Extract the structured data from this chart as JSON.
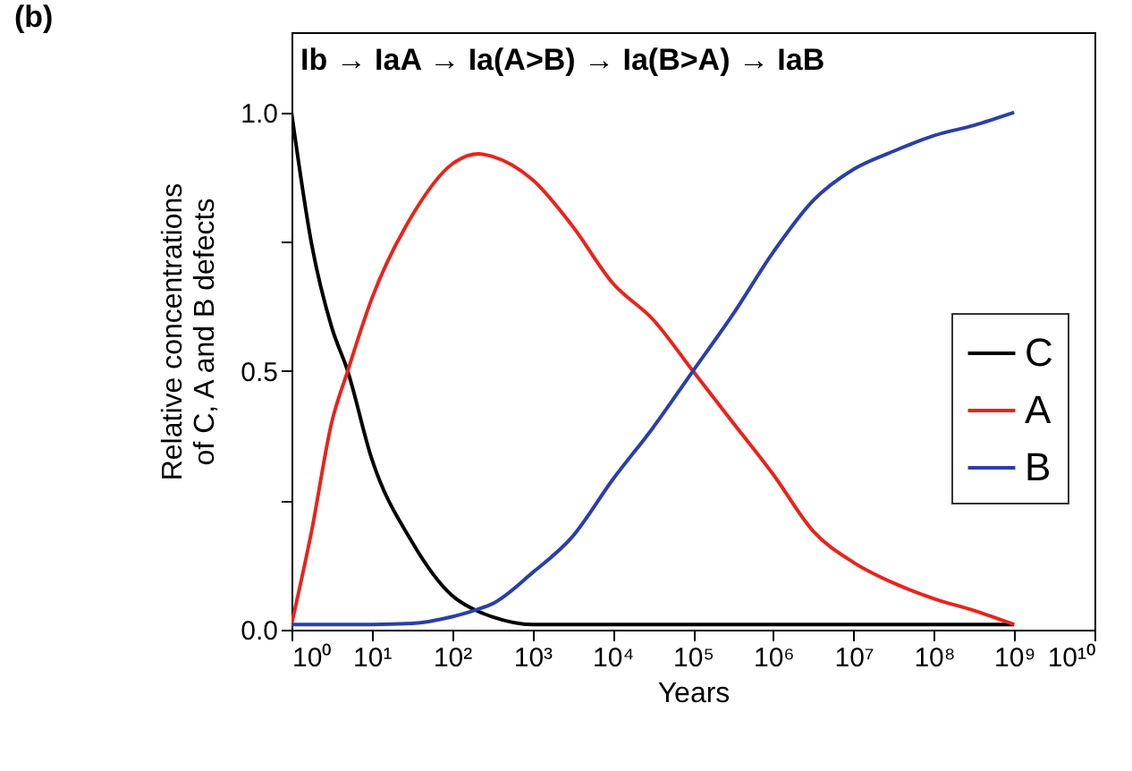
{
  "chart_data": {
    "type": "line",
    "xlabel": "Years",
    "ylabel": "Relative concentrations\nof C, A and B defects",
    "annotations": [
      "(b)",
      "Ib → IaA → Ia(A>B) → Ia(B>A) → IaB"
    ],
    "log": "x",
    "xlim": [
      1,
      10000000000
    ],
    "ylim": [
      0,
      1.155
    ],
    "xticks": [
      {
        "value": 1,
        "label": "10⁰"
      },
      {
        "value": 10,
        "label": "10¹"
      },
      {
        "value": 100,
        "label": "10²"
      },
      {
        "value": 1000,
        "label": "10³"
      },
      {
        "value": 10000,
        "label": "10⁴"
      },
      {
        "value": 100000,
        "label": "10⁵"
      },
      {
        "value": 1000000,
        "label": "10⁶"
      },
      {
        "value": 10000000,
        "label": "10⁷"
      },
      {
        "value": 100000000,
        "label": "10⁸"
      },
      {
        "value": 1000000000,
        "label": "10⁹"
      },
      {
        "value": 10000000000,
        "label": "10¹⁰"
      }
    ],
    "yticks": [
      {
        "value": 0,
        "label": "0.0"
      },
      {
        "value": 0.25,
        "label": null
      },
      {
        "value": 0.5,
        "label": "0.5"
      },
      {
        "value": 0.75,
        "label": null
      },
      {
        "value": 1,
        "label": "1.0"
      }
    ],
    "grid": false,
    "legend": "right",
    "marker": "none",
    "line_style": "solid",
    "x": [
      1,
      1.778,
      3.162,
      5.012,
      10,
      31.62,
      100,
      214,
      316.2,
      1000,
      3162,
      10000,
      31620,
      100000,
      316200,
      1000000,
      3162000,
      10000000,
      31620000,
      100000000,
      316200000,
      1000000000
    ],
    "series": [
      {
        "name": "C",
        "color": "#000000",
        "values": [
          1.0,
          0.746,
          0.585,
          0.5,
          0.33,
          0.17,
          0.066,
          0.035,
          0.025,
          0.01,
          0.01,
          0.01,
          0.01,
          0.01,
          0.01,
          0.01,
          0.01,
          0.01,
          0.01,
          0.01,
          0.01,
          0.01
        ]
      },
      {
        "name": "A",
        "color": "#e8241c",
        "values": [
          0.01,
          0.19,
          0.4,
          0.5,
          0.64,
          0.8,
          0.9,
          0.92,
          0.915,
          0.87,
          0.78,
          0.67,
          0.6,
          0.5,
          0.4,
          0.3,
          0.19,
          0.13,
          0.09,
          0.06,
          0.037,
          0.01
        ]
      },
      {
        "name": "B",
        "color": "#2a3fa8",
        "values": [
          0.01,
          0.01,
          0.01,
          0.01,
          0.01,
          0.012,
          0.025,
          0.04,
          0.05,
          0.11,
          0.18,
          0.29,
          0.39,
          0.5,
          0.61,
          0.73,
          0.83,
          0.89,
          0.925,
          0.955,
          0.975,
          1.0
        ]
      }
    ]
  }
}
